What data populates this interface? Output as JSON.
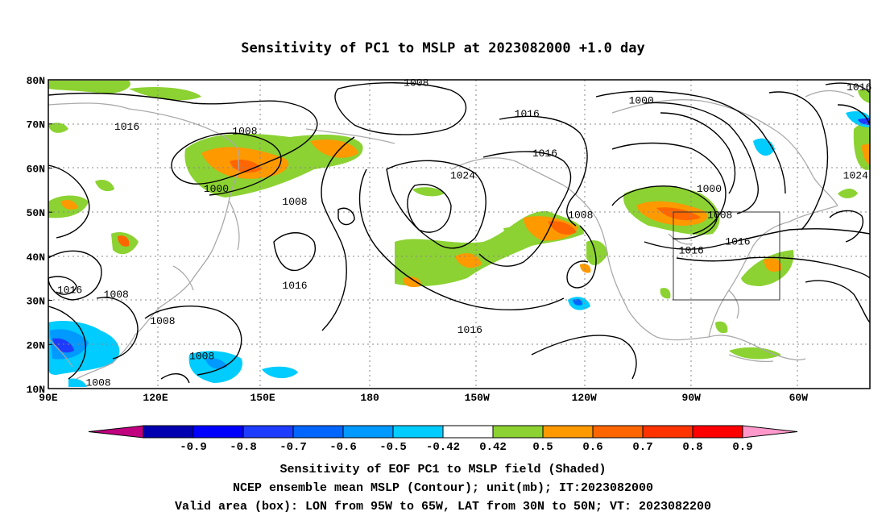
{
  "title": "Sensitivity of PC1 to MSLP at 2023082000 +1.0 day",
  "axes": {
    "lat_ticks": [
      "80N",
      "70N",
      "60N",
      "50N",
      "40N",
      "30N",
      "20N",
      "10N"
    ],
    "lon_ticks": [
      "90E",
      "120E",
      "150E",
      "180",
      "150W",
      "120W",
      "90W",
      "60W"
    ]
  },
  "valid_box": {
    "lon_from": -95,
    "lon_to": -65,
    "lat_from": 30,
    "lat_to": 50
  },
  "contour_labels": [
    {
      "text": "1008",
      "lon": -167,
      "lat": 79
    },
    {
      "text": "1016",
      "lon": -43,
      "lat": 78
    },
    {
      "text": "1000",
      "lon": -104,
      "lat": 75
    },
    {
      "text": "1016",
      "lon": -136,
      "lat": 72
    },
    {
      "text": "1016",
      "lon": 112,
      "lat": 69
    },
    {
      "text": "1008",
      "lon": 145,
      "lat": 68
    },
    {
      "text": "1016",
      "lon": -131,
      "lat": 63
    },
    {
      "text": "1024",
      "lon": -154,
      "lat": 58
    },
    {
      "text": "1024",
      "lon": -44,
      "lat": 58
    },
    {
      "text": "1000",
      "lon": 137,
      "lat": 55
    },
    {
      "text": "1008",
      "lon": 159,
      "lat": 52
    },
    {
      "text": "1000",
      "lon": -85,
      "lat": 55
    },
    {
      "text": "1008",
      "lon": -121,
      "lat": 49
    },
    {
      "text": "1008",
      "lon": -82,
      "lat": 49
    },
    {
      "text": "1016",
      "lon": -77,
      "lat": 43
    },
    {
      "text": "1016",
      "lon": -90,
      "lat": 41
    },
    {
      "text": "1016",
      "lon": 159,
      "lat": 33
    },
    {
      "text": "1016",
      "lon": 96,
      "lat": 32
    },
    {
      "text": "1008",
      "lon": 109,
      "lat": 31
    },
    {
      "text": "1008",
      "lon": 122,
      "lat": 25
    },
    {
      "text": "1008",
      "lon": 133,
      "lat": 17
    },
    {
      "text": "1008",
      "lon": 104,
      "lat": 11
    },
    {
      "text": "1016",
      "lon": -152,
      "lat": 23
    }
  ],
  "colorbar": {
    "labels": [
      "-0.9",
      "-0.8",
      "-0.7",
      "-0.6",
      "-0.5",
      "-0.42",
      "0.42",
      "0.5",
      "0.6",
      "0.7",
      "0.8",
      "0.9"
    ],
    "colors": [
      "#c0007f",
      "#0000b0",
      "#0000ff",
      "#1e3cff",
      "#0066ff",
      "#0099ff",
      "#00ccff",
      "#ffffff",
      "#8cd232",
      "#ff9900",
      "#ff6600",
      "#ff3300",
      "#ff0000",
      "#ff99cc"
    ]
  },
  "caption": {
    "line1": "Sensitivity of EOF PC1 to MSLP field (Shaded)",
    "line2": "NCEP ensemble mean MSLP (Contour); unit(mb); IT:2023082000",
    "line3": "Valid area (box): LON from 95W to 65W, LAT from 30N to 50N; VT: 2023082200"
  }
}
